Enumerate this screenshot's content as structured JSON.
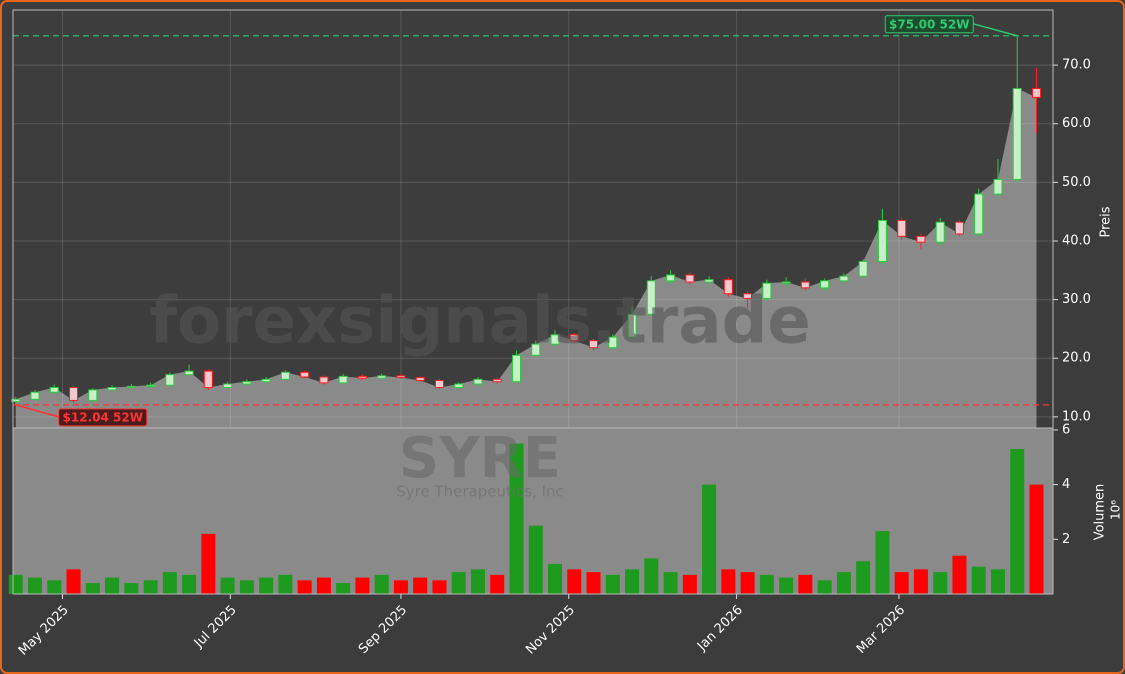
{
  "chart_data": {
    "type": "candlestick",
    "watermark": "forexsignals.trade",
    "ticker": "SYRE",
    "company": "Syre Therapeutics, Inc",
    "ylabel": "Preis",
    "x": [
      "2025-04-14",
      "2025-04-21",
      "2025-04-28",
      "2025-05-05",
      "2025-05-12",
      "2025-05-19",
      "2025-05-26",
      "2025-06-02",
      "2025-06-09",
      "2025-06-16",
      "2025-06-23",
      "2025-06-30",
      "2025-07-07",
      "2025-07-14",
      "2025-07-21",
      "2025-07-28",
      "2025-08-04",
      "2025-08-11",
      "2025-08-18",
      "2025-08-25",
      "2025-09-01",
      "2025-09-08",
      "2025-09-15",
      "2025-09-22",
      "2025-09-29",
      "2025-10-06",
      "2025-10-13",
      "2025-10-20",
      "2025-10-27",
      "2025-11-03",
      "2025-11-10",
      "2025-11-17",
      "2025-11-24",
      "2025-12-01",
      "2025-12-08",
      "2025-12-15",
      "2025-12-22",
      "2025-12-29",
      "2026-01-05",
      "2026-01-12",
      "2026-01-19",
      "2026-01-26",
      "2026-02-02",
      "2026-02-09",
      "2026-02-16",
      "2026-02-23",
      "2026-03-02",
      "2026-03-09",
      "2026-03-16",
      "2026-03-23",
      "2026-03-30",
      "2026-04-06",
      "2026-04-13",
      "2026-04-20"
    ],
    "open": [
      12.6,
      13.0,
      14.2,
      15.0,
      12.8,
      14.6,
      15.0,
      15.2,
      15.4,
      17.2,
      17.8,
      15.0,
      15.6,
      16.0,
      16.4,
      17.6,
      16.8,
      15.8,
      16.9,
      16.6,
      17.0,
      16.7,
      16.2,
      15.0,
      15.6,
      16.4,
      16.0,
      20.5,
      22.4,
      24.0,
      23.0,
      21.8,
      23.6,
      27.5,
      33.2,
      34.2,
      33.0,
      33.4,
      31.0,
      30.2,
      32.8,
      33.0,
      32.0,
      33.2,
      34.0,
      36.5,
      43.5,
      40.8,
      39.8,
      43.2,
      41.2,
      48.0,
      50.5,
      66.0
    ],
    "high": [
      13.4,
      14.6,
      15.5,
      15.3,
      14.9,
      15.4,
      15.6,
      15.8,
      17.6,
      18.9,
      18.1,
      16.0,
      16.4,
      16.8,
      17.9,
      17.9,
      17.1,
      17.3,
      17.2,
      17.4,
      17.3,
      16.9,
      16.5,
      15.9,
      16.8,
      16.7,
      21.3,
      23.0,
      24.8,
      24.3,
      23.3,
      24.1,
      28.8,
      34.0,
      35.0,
      34.6,
      34.0,
      33.8,
      31.5,
      33.4,
      33.8,
      33.6,
      33.6,
      34.5,
      36.9,
      45.5,
      44.0,
      41.3,
      43.9,
      43.6,
      48.9,
      54.0,
      75.0,
      69.5
    ],
    "low": [
      12.04,
      12.8,
      14.0,
      12.4,
      12.6,
      14.4,
      14.8,
      15.0,
      15.1,
      17.0,
      14.6,
      14.8,
      15.4,
      15.8,
      16.2,
      16.6,
      15.5,
      15.6,
      16.3,
      16.4,
      16.5,
      16.0,
      14.8,
      14.8,
      15.4,
      15.7,
      15.8,
      20.1,
      22.0,
      22.6,
      21.4,
      21.5,
      23.2,
      27.0,
      32.8,
      32.6,
      32.6,
      30.5,
      28.5,
      29.8,
      32.2,
      31.6,
      31.5,
      32.8,
      33.6,
      36.0,
      40.2,
      38.6,
      39.2,
      40.8,
      40.8,
      47.5,
      49.8,
      58.5
    ],
    "close": [
      13.0,
      14.2,
      15.0,
      12.8,
      14.6,
      15.0,
      15.2,
      15.4,
      17.2,
      17.8,
      15.0,
      15.6,
      16.0,
      16.4,
      17.6,
      16.8,
      15.8,
      16.9,
      16.6,
      17.0,
      16.7,
      16.2,
      15.0,
      15.6,
      16.4,
      16.0,
      20.5,
      22.4,
      24.0,
      23.0,
      21.8,
      23.6,
      27.5,
      33.2,
      34.2,
      33.0,
      33.4,
      31.0,
      30.2,
      32.8,
      33.0,
      32.0,
      33.2,
      34.0,
      36.5,
      43.5,
      40.8,
      39.8,
      43.2,
      41.2,
      48.0,
      50.5,
      66.0,
      64.5
    ],
    "up_color": "#2ecc40",
    "down_color": "#ff2020",
    "area_color": "#8a8a8a",
    "xlim": [
      "2025-04-13",
      "2026-04-26"
    ],
    "xticks": [
      {
        "value": "2025-05-01",
        "label": "May 2025"
      },
      {
        "value": "2025-07-01",
        "label": "Jul 2025"
      },
      {
        "value": "2025-09-01",
        "label": "Sep 2025"
      },
      {
        "value": "2025-11-01",
        "label": "Nov 2025"
      },
      {
        "value": "2026-01-01",
        "label": "Jan 2026"
      },
      {
        "value": "2026-03-01",
        "label": "Mar 2026"
      }
    ],
    "ylim": [
      8.1,
      79.4
    ],
    "yticks": [
      {
        "value": 10,
        "label": "10.0"
      },
      {
        "value": 20,
        "label": "20.0"
      },
      {
        "value": 30,
        "label": "30.0"
      },
      {
        "value": 40,
        "label": "40.0"
      },
      {
        "value": 50,
        "label": "50.0"
      },
      {
        "value": 60,
        "label": "60.0"
      },
      {
        "value": 70,
        "label": "70.0"
      }
    ],
    "grid": true,
    "annotations": [
      {
        "text": "$75.00 52W",
        "value": 75.0,
        "x": "2026-04-13",
        "color": "#2ecc71"
      },
      {
        "text": "$12.04 52W",
        "value": 12.04,
        "x": "2025-04-14",
        "color": "#ff3333"
      }
    ],
    "volume": {
      "ylabel": "Volumen",
      "exponent": "10⁶",
      "values": [
        0.7,
        0.6,
        0.5,
        0.9,
        0.4,
        0.6,
        0.4,
        0.5,
        0.8,
        0.7,
        2.2,
        0.6,
        0.5,
        0.6,
        0.7,
        0.5,
        0.6,
        0.4,
        0.6,
        0.7,
        0.5,
        0.6,
        0.5,
        0.8,
        0.9,
        0.7,
        5.5,
        2.5,
        1.1,
        0.9,
        0.8,
        0.7,
        0.9,
        1.3,
        0.8,
        0.7,
        4.0,
        0.9,
        0.8,
        0.7,
        0.6,
        0.7,
        0.5,
        0.8,
        1.2,
        2.3,
        0.8,
        0.9,
        0.8,
        1.4,
        1.0,
        0.9,
        5.3,
        4.0
      ],
      "up_color": "#1e9a1e",
      "down_color": "#ff0000",
      "ylim": [
        0,
        6.07
      ],
      "yticks": [
        2,
        4,
        6
      ]
    }
  }
}
